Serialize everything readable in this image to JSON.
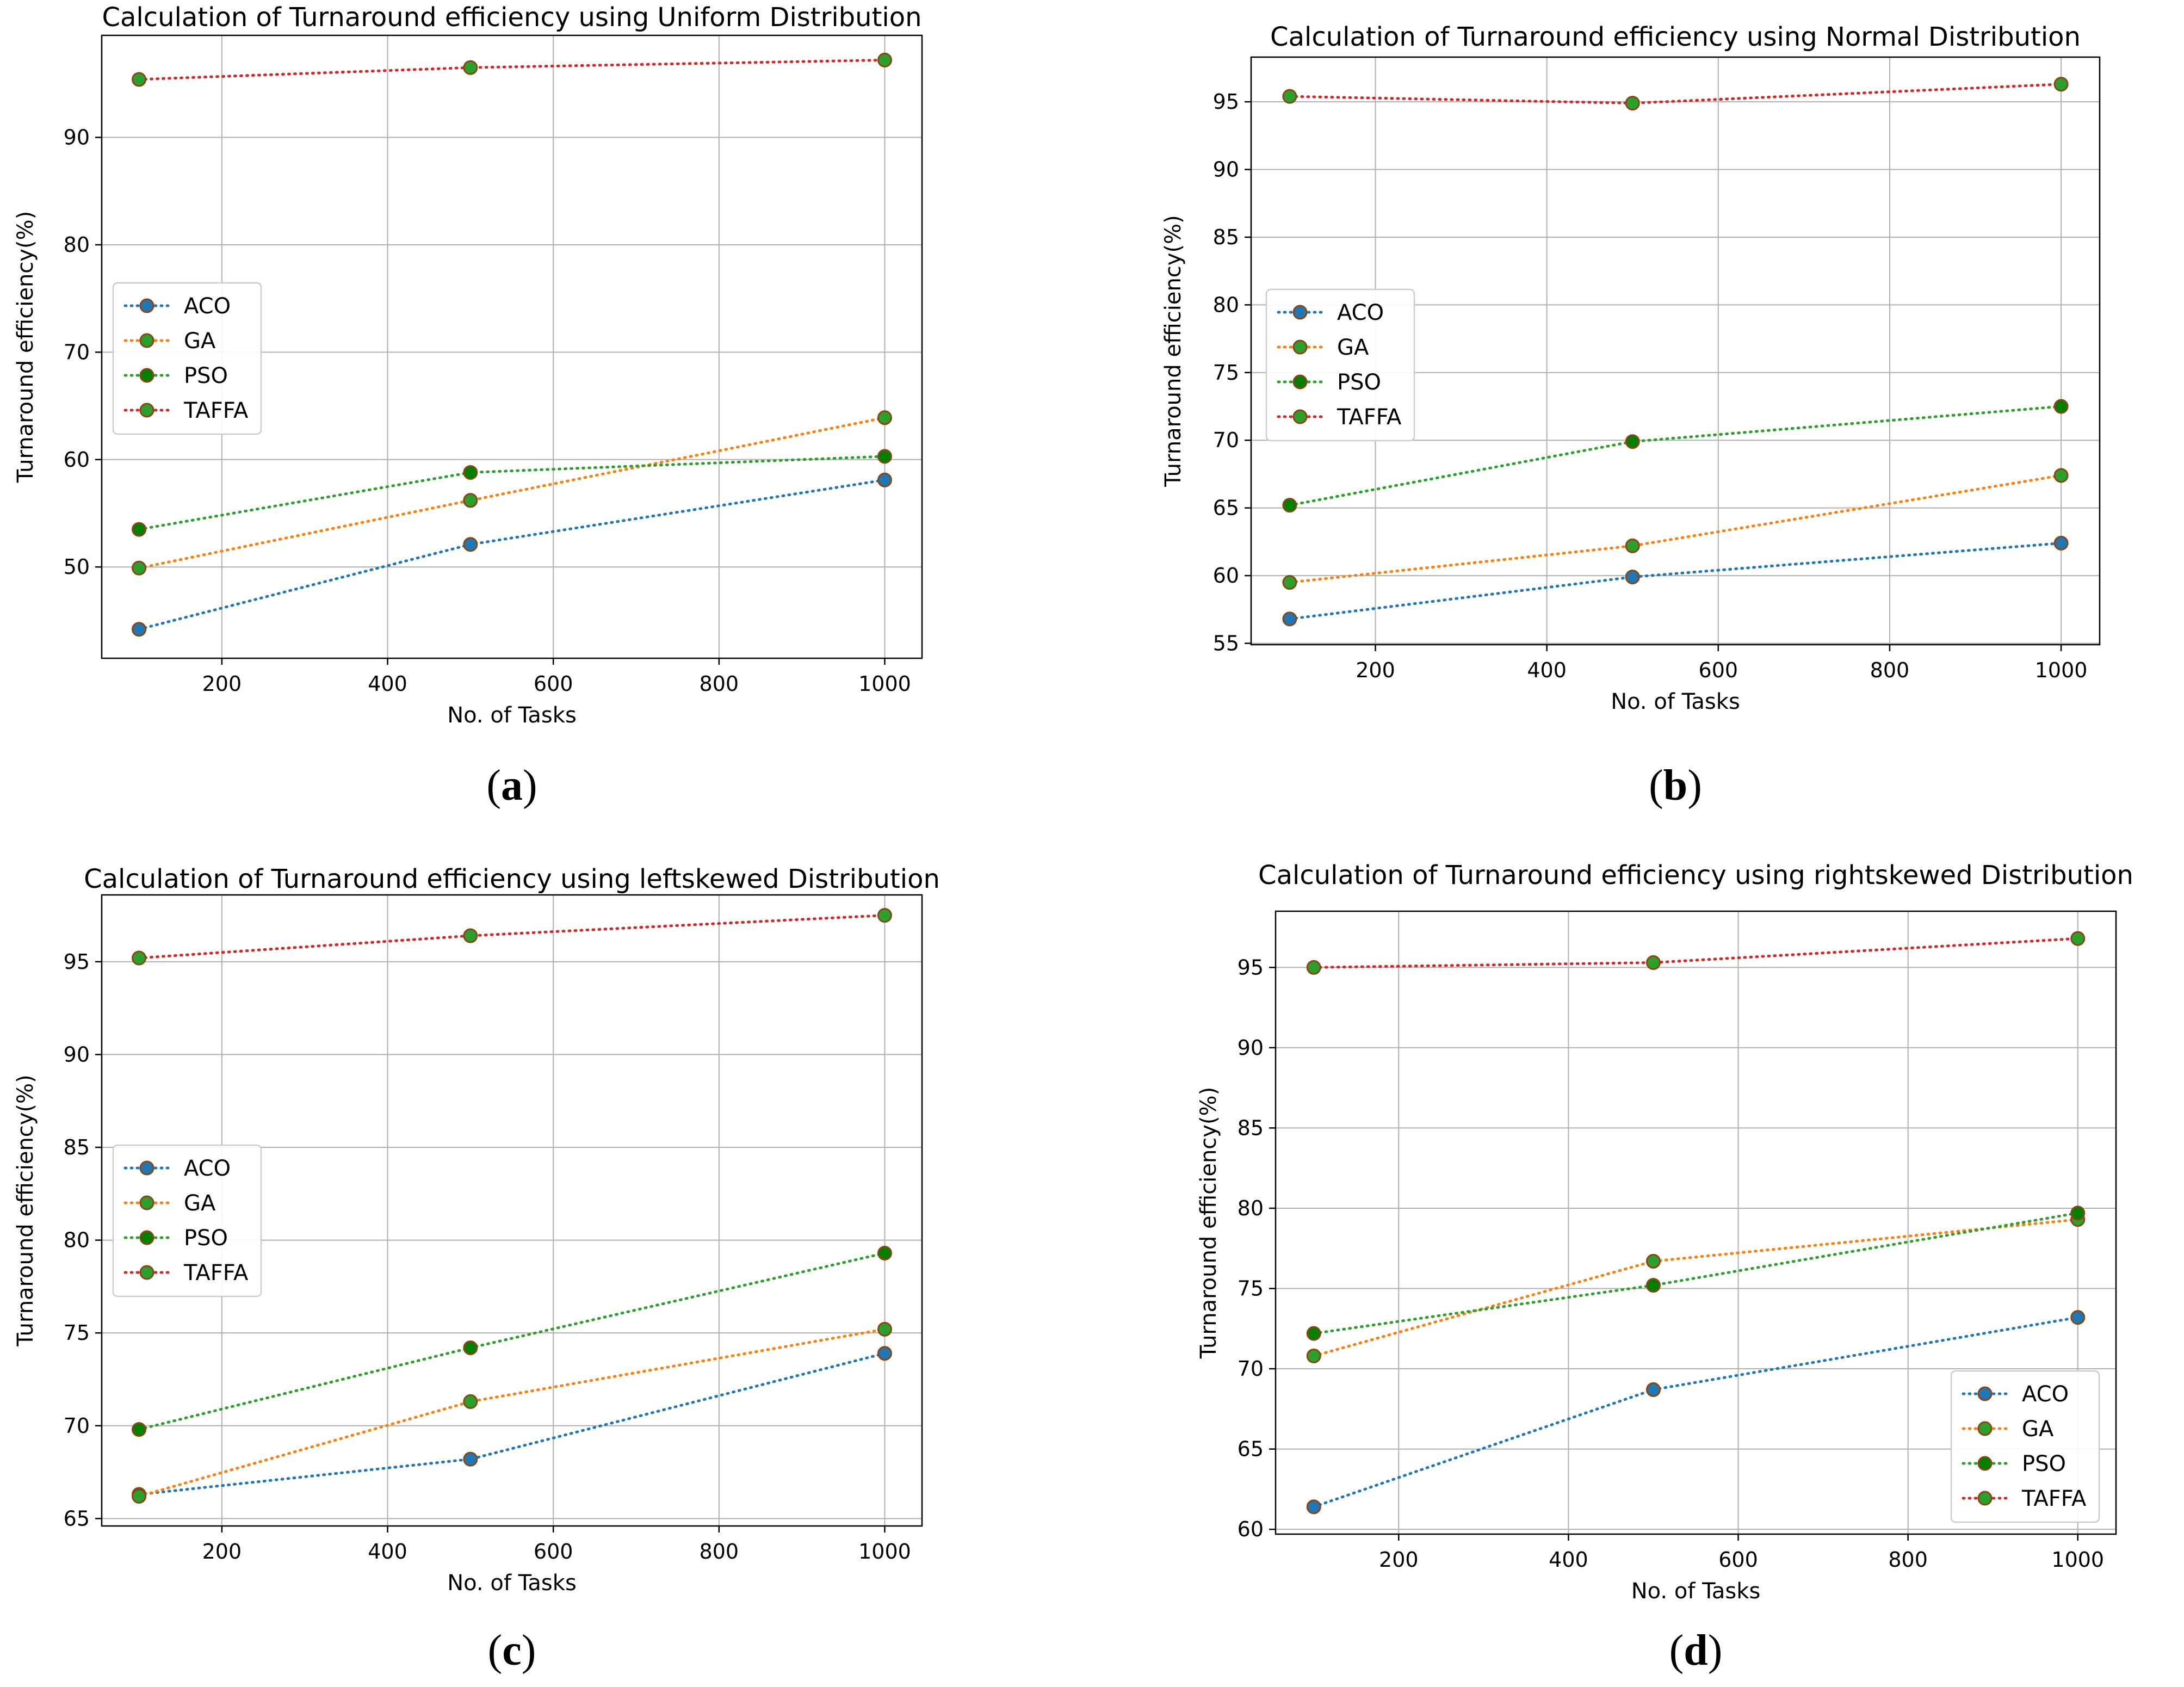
{
  "figure": {
    "series_styles": [
      {
        "name": "ACO",
        "color": "#1f77b4",
        "marker_face": "#1f77b4"
      },
      {
        "name": "GA",
        "color": "#ff7f0e",
        "marker_face": "#2ca02c"
      },
      {
        "name": "PSO",
        "color": "#2ca02c",
        "marker_face": "#008000"
      },
      {
        "name": "TAFFA",
        "color": "#d62728",
        "marker_face": "#2ca02c"
      }
    ],
    "marker_edge": "#8B4513"
  },
  "chart_data": [
    {
      "type": "line",
      "panel": "a",
      "caption": "(a)",
      "caption_letter": "a",
      "title": "Calculation of Turnaround efficiency using Uniform Distribution",
      "xlabel": "No. of Tasks",
      "ylabel": "Turnaround efficiency(%)",
      "x": [
        100,
        500,
        1000
      ],
      "xlim": [
        55,
        1045
      ],
      "ylim": [
        41.5,
        99.5
      ],
      "xticks": [
        200,
        400,
        600,
        800,
        1000
      ],
      "yticks": [
        50,
        60,
        70,
        80,
        90
      ],
      "grid": true,
      "legend_position": "center-left",
      "series": [
        {
          "name": "ACO",
          "values": [
            44.2,
            52.1,
            58.1
          ]
        },
        {
          "name": "GA",
          "values": [
            49.9,
            56.2,
            63.9
          ]
        },
        {
          "name": "PSO",
          "values": [
            53.5,
            58.8,
            60.3
          ]
        },
        {
          "name": "TAFFA",
          "values": [
            95.4,
            96.5,
            97.2
          ]
        }
      ]
    },
    {
      "type": "line",
      "panel": "b",
      "caption": "(b)",
      "caption_letter": "b",
      "title": "Calculation of Turnaround efficiency using Normal Distribution",
      "xlabel": "No. of Tasks",
      "ylabel": "Turnaround efficiency(%)",
      "x": [
        100,
        500,
        1000
      ],
      "xlim": [
        55,
        1045
      ],
      "ylim": [
        54.9,
        98.3
      ],
      "xticks": [
        200,
        400,
        600,
        800,
        1000
      ],
      "yticks": [
        55,
        60,
        65,
        70,
        75,
        80,
        85,
        90,
        95
      ],
      "grid": true,
      "legend_position": "center-left",
      "series": [
        {
          "name": "ACO",
          "values": [
            56.8,
            59.9,
            62.4
          ]
        },
        {
          "name": "GA",
          "values": [
            59.5,
            62.2,
            67.4
          ]
        },
        {
          "name": "PSO",
          "values": [
            65.2,
            69.9,
            72.5
          ]
        },
        {
          "name": "TAFFA",
          "values": [
            95.4,
            94.9,
            96.3
          ]
        }
      ]
    },
    {
      "type": "line",
      "panel": "c",
      "caption": "(c)",
      "caption_letter": "c",
      "title": "Calculation of Turnaround efficiency using leftskewed Distribution",
      "xlabel": "No. of Tasks",
      "ylabel": "Turnaround efficiency(%)",
      "x": [
        100,
        500,
        1000
      ],
      "xlim": [
        55,
        1045
      ],
      "ylim": [
        64.6,
        98.6
      ],
      "xticks": [
        200,
        400,
        600,
        800,
        1000
      ],
      "yticks": [
        65,
        70,
        75,
        80,
        85,
        90,
        95
      ],
      "grid": true,
      "legend_position": "center-left",
      "series": [
        {
          "name": "ACO",
          "values": [
            66.3,
            68.2,
            73.9
          ]
        },
        {
          "name": "GA",
          "values": [
            66.2,
            71.3,
            75.2
          ]
        },
        {
          "name": "PSO",
          "values": [
            69.8,
            74.2,
            79.3
          ]
        },
        {
          "name": "TAFFA",
          "values": [
            95.2,
            96.4,
            97.5
          ]
        }
      ]
    },
    {
      "type": "line",
      "panel": "d",
      "caption": "(d)",
      "caption_letter": "d",
      "title": "Calculation of Turnaround efficiency using rightskewed Distribution",
      "xlabel": "No. of Tasks",
      "ylabel": "Turnaround efficiency(%)",
      "x": [
        100,
        500,
        1000
      ],
      "xlim": [
        55,
        1045
      ],
      "ylim": [
        59.7,
        98.5
      ],
      "xticks": [
        200,
        400,
        600,
        800,
        1000
      ],
      "yticks": [
        60,
        65,
        70,
        75,
        80,
        85,
        90,
        95
      ],
      "grid": true,
      "legend_position": "lower-right",
      "series": [
        {
          "name": "ACO",
          "values": [
            61.4,
            68.7,
            73.2
          ]
        },
        {
          "name": "GA",
          "values": [
            70.8,
            76.7,
            79.3
          ]
        },
        {
          "name": "PSO",
          "values": [
            72.2,
            75.2,
            79.7
          ]
        },
        {
          "name": "TAFFA",
          "values": [
            95.0,
            95.3,
            96.8
          ]
        }
      ]
    }
  ]
}
